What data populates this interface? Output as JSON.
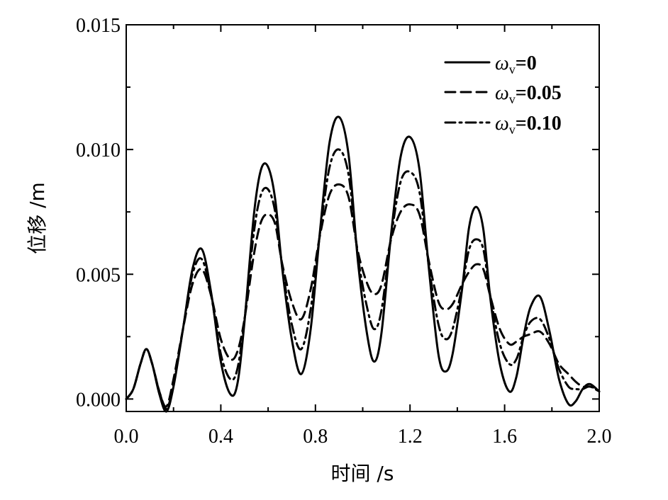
{
  "chart_data": {
    "type": "line",
    "title": "",
    "xlabel": "时间 /s",
    "ylabel": "位移 /m",
    "xlim": [
      0.0,
      2.0
    ],
    "ylim": [
      -0.0005,
      0.015
    ],
    "xticks": [
      "0.0",
      "0.4",
      "0.8",
      "1.2",
      "1.6",
      "2.0"
    ],
    "xtick_values": [
      0.0,
      0.4,
      0.8,
      1.2,
      1.6,
      2.0
    ],
    "yticks": [
      "0.000",
      "0.005",
      "0.010",
      "0.015"
    ],
    "ytick_values": [
      0.0,
      0.005,
      0.01,
      0.015
    ],
    "grid": false,
    "legend_position": "top-right",
    "x": [
      0.0,
      0.03,
      0.06,
      0.085,
      0.11,
      0.14,
      0.17,
      0.2,
      0.24,
      0.28,
      0.32,
      0.36,
      0.4,
      0.44,
      0.47,
      0.5,
      0.54,
      0.57,
      0.6,
      0.63,
      0.66,
      0.7,
      0.74,
      0.78,
      0.82,
      0.86,
      0.9,
      0.94,
      0.98,
      1.02,
      1.05,
      1.08,
      1.12,
      1.16,
      1.2,
      1.24,
      1.28,
      1.32,
      1.35,
      1.38,
      1.42,
      1.45,
      1.48,
      1.51,
      1.54,
      1.58,
      1.62,
      1.65,
      1.68,
      1.71,
      1.75,
      1.79,
      1.83,
      1.87,
      1.9,
      1.93,
      1.96,
      2.0
    ],
    "series": [
      {
        "name": "ωv=0",
        "legend_symbol": "ω",
        "legend_sub": "v",
        "legend_value": "=0",
        "dash": "solid",
        "values": [
          0.0,
          0.0004,
          0.0014,
          0.002,
          0.0014,
          0.0002,
          -0.0005,
          0.0005,
          0.0028,
          0.0052,
          0.006,
          0.0042,
          0.0015,
          0.0002,
          0.0006,
          0.0031,
          0.0074,
          0.0092,
          0.0093,
          0.008,
          0.0052,
          0.0024,
          0.001,
          0.0028,
          0.0068,
          0.0103,
          0.0113,
          0.0098,
          0.0055,
          0.0025,
          0.0015,
          0.0027,
          0.0066,
          0.0097,
          0.0105,
          0.0092,
          0.0052,
          0.0018,
          0.0011,
          0.0018,
          0.0044,
          0.0069,
          0.0077,
          0.0068,
          0.004,
          0.0014,
          0.0003,
          0.0009,
          0.0025,
          0.0037,
          0.0041,
          0.0027,
          0.0008,
          -0.0002,
          -0.0001,
          0.0004,
          0.0006,
          0.0003
        ]
      },
      {
        "name": "ωv=0.05",
        "legend_symbol": "ω",
        "legend_sub": "v",
        "legend_value": "=0.05",
        "dash": "dashed",
        "values": [
          0.0,
          0.0004,
          0.0014,
          0.002,
          0.0014,
          0.0003,
          -0.0003,
          0.0008,
          0.0028,
          0.0046,
          0.0052,
          0.0041,
          0.0024,
          0.0016,
          0.0019,
          0.0032,
          0.0058,
          0.0071,
          0.0074,
          0.007,
          0.0054,
          0.0039,
          0.0032,
          0.0044,
          0.0066,
          0.0082,
          0.0086,
          0.0081,
          0.0059,
          0.0046,
          0.0042,
          0.0046,
          0.0064,
          0.0075,
          0.0078,
          0.0074,
          0.0055,
          0.0039,
          0.0036,
          0.0038,
          0.0046,
          0.0051,
          0.0054,
          0.0052,
          0.0041,
          0.0028,
          0.0022,
          0.0023,
          0.0025,
          0.0026,
          0.0027,
          0.0022,
          0.0014,
          0.001,
          0.0007,
          0.0005,
          0.0005,
          0.0004
        ]
      },
      {
        "name": "ωv=0.10",
        "legend_symbol": "ω",
        "legend_sub": "v",
        "legend_value": "=0.10",
        "dash": "dashdot",
        "values": [
          0.0,
          0.0004,
          0.0014,
          0.002,
          0.0014,
          0.0003,
          -0.0004,
          0.0006,
          0.0028,
          0.005,
          0.0056,
          0.0041,
          0.0018,
          0.0008,
          0.0012,
          0.0032,
          0.0067,
          0.0082,
          0.0084,
          0.0075,
          0.0053,
          0.003,
          0.002,
          0.0036,
          0.0067,
          0.0093,
          0.01,
          0.009,
          0.0057,
          0.0036,
          0.0028,
          0.0036,
          0.0065,
          0.0087,
          0.0091,
          0.0083,
          0.0053,
          0.003,
          0.0024,
          0.0028,
          0.0045,
          0.006,
          0.0064,
          0.006,
          0.0041,
          0.0022,
          0.0014,
          0.0016,
          0.0025,
          0.0031,
          0.0032,
          0.0024,
          0.0012,
          0.0005,
          0.0004,
          0.0004,
          0.0005,
          0.0003
        ]
      }
    ]
  }
}
